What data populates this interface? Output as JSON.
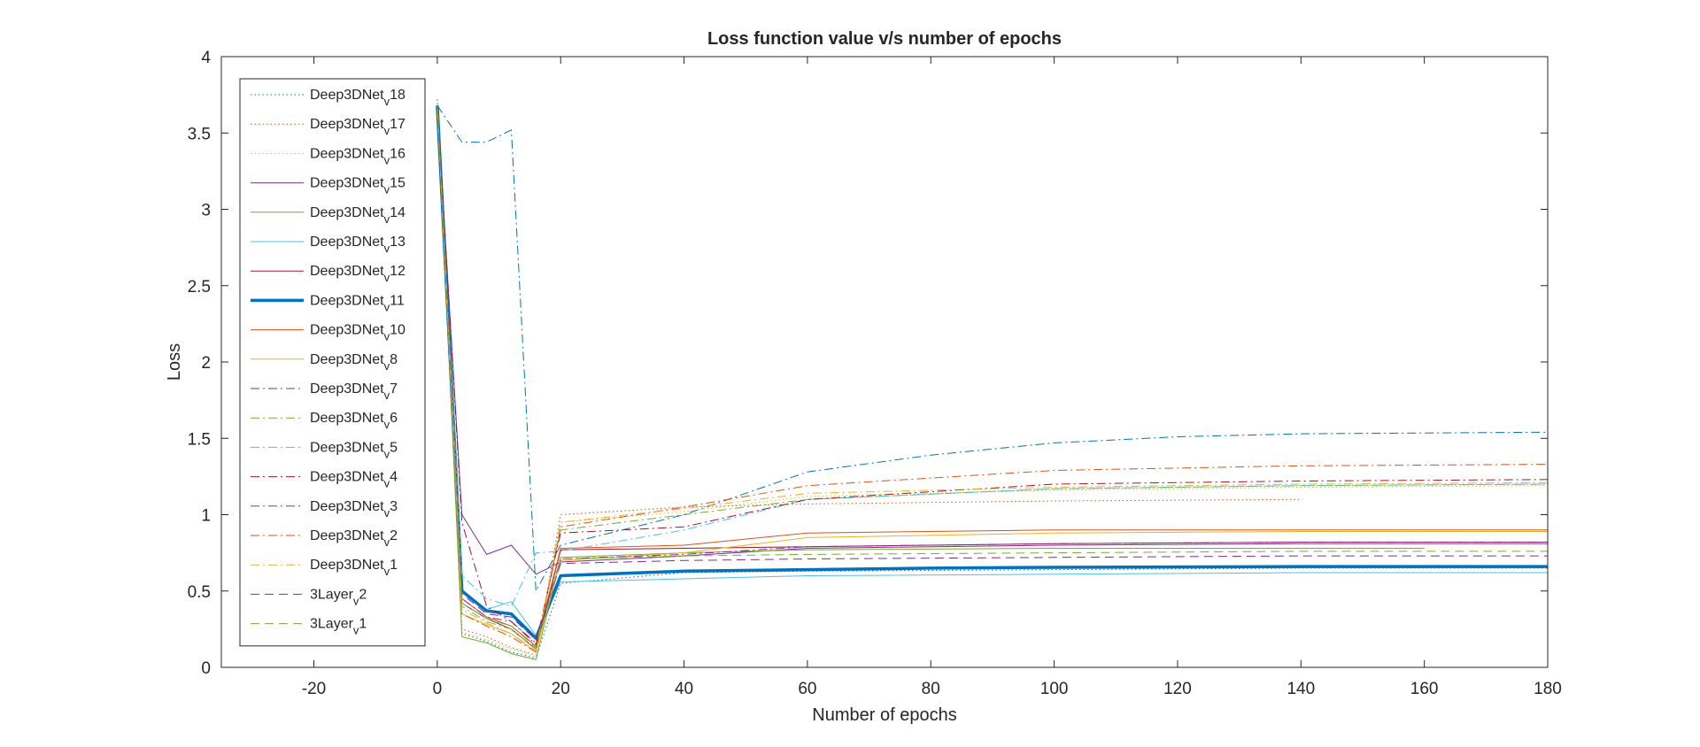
{
  "chart_data": {
    "type": "line",
    "title": "Loss function value v/s number of epochs",
    "xlabel": "Number of epochs",
    "ylabel": "Loss",
    "xlim": [
      -35,
      180
    ],
    "ylim": [
      0,
      4
    ],
    "xticks": [
      -20,
      0,
      20,
      40,
      60,
      80,
      100,
      120,
      140,
      160,
      180
    ],
    "yticks": [
      0,
      0.5,
      1,
      1.5,
      2,
      2.5,
      3,
      3.5,
      4
    ],
    "grid": false,
    "legend_position": "top-left",
    "series": [
      {
        "name": "Deep3DNet_v18",
        "label_base": "Deep3DNet",
        "label_sub": "v",
        "label_suffix": "18",
        "color": "#0072BD",
        "dash": "dotted",
        "width": 1,
        "x": [
          0,
          4,
          8,
          12,
          16,
          20,
          40,
          60,
          100,
          140,
          160,
          180
        ],
        "y": [
          3.72,
          0.22,
          0.17,
          0.1,
          0.06,
          0.55,
          0.62,
          0.63,
          0.64,
          0.65,
          0.65,
          0.65
        ]
      },
      {
        "name": "Deep3DNet_v17",
        "label_base": "Deep3DNet",
        "label_sub": "v",
        "label_suffix": "17",
        "color": "#D95319",
        "dash": "dotted",
        "width": 1,
        "x": [
          0,
          4,
          8,
          12,
          16,
          20,
          40,
          60,
          100,
          140
        ],
        "y": [
          3.7,
          0.25,
          0.2,
          0.13,
          0.08,
          1.0,
          1.05,
          1.07,
          1.09,
          1.1
        ]
      },
      {
        "name": "Deep3DNet_v16",
        "label_base": "Deep3DNet",
        "label_sub": "v",
        "label_suffix": "16",
        "color": "#EDB120",
        "dash": "dotted",
        "width": 1,
        "x": [
          0,
          4,
          8,
          12,
          16,
          20,
          40,
          60,
          100,
          140,
          180
        ],
        "y": [
          3.7,
          0.23,
          0.18,
          0.12,
          0.07,
          0.95,
          1.02,
          1.12,
          1.16,
          1.18,
          1.19
        ]
      },
      {
        "name": "Deep3DNet_v15",
        "label_base": "Deep3DNet",
        "label_sub": "v",
        "label_suffix": "15",
        "color": "#7E2F8E",
        "dash": "solid",
        "width": 1,
        "x": [
          0,
          4,
          8,
          12,
          16,
          20,
          40,
          60,
          100,
          140,
          180
        ],
        "y": [
          3.68,
          1.0,
          0.74,
          0.8,
          0.61,
          0.69,
          0.73,
          0.78,
          0.8,
          0.81,
          0.81
        ]
      },
      {
        "name": "Deep3DNet_v14",
        "label_base": "Deep3DNet",
        "label_sub": "v",
        "label_suffix": "14",
        "color": "#77AC30",
        "dash": "solid",
        "width": 1,
        "x": [
          0,
          4,
          8,
          12,
          16,
          20,
          40,
          60,
          100,
          140,
          160
        ],
        "y": [
          3.68,
          0.2,
          0.16,
          0.09,
          0.05,
          0.72,
          0.75,
          0.77,
          0.78,
          0.78,
          0.78
        ]
      },
      {
        "name": "Deep3DNet_v13",
        "label_base": "Deep3DNet",
        "label_sub": "v",
        "label_suffix": "13",
        "color": "#4DBEEE",
        "dash": "solid",
        "width": 1,
        "x": [
          0,
          4,
          8,
          12,
          16,
          20,
          40,
          60,
          100,
          140,
          180
        ],
        "y": [
          3.68,
          0.5,
          0.38,
          0.43,
          0.21,
          0.56,
          0.58,
          0.6,
          0.61,
          0.62,
          0.62
        ]
      },
      {
        "name": "Deep3DNet_v12",
        "label_base": "Deep3DNet",
        "label_sub": "v",
        "label_suffix": "12",
        "color": "#A2142F",
        "dash": "solid",
        "width": 1,
        "x": [
          0,
          4,
          8,
          12,
          16,
          20,
          40,
          60,
          100,
          140,
          180
        ],
        "y": [
          3.68,
          0.42,
          0.32,
          0.25,
          0.12,
          0.77,
          0.78,
          0.79,
          0.81,
          0.82,
          0.82
        ]
      },
      {
        "name": "Deep3DNet_v11",
        "label_base": "Deep3DNet",
        "label_sub": "v",
        "label_suffix": "11",
        "color": "#0072BD",
        "dash": "solid",
        "width": 3.5,
        "x": [
          0,
          4,
          8,
          12,
          16,
          20,
          40,
          60,
          80,
          100,
          140,
          180
        ],
        "y": [
          3.68,
          0.5,
          0.37,
          0.35,
          0.19,
          0.6,
          0.63,
          0.64,
          0.65,
          0.655,
          0.66,
          0.66
        ]
      },
      {
        "name": "Deep3DNet_v10",
        "label_base": "Deep3DNet",
        "label_sub": "v",
        "label_suffix": "10",
        "color": "#D95319",
        "dash": "solid",
        "width": 1,
        "x": [
          0,
          4,
          8,
          12,
          16,
          20,
          40,
          60,
          100,
          140,
          180
        ],
        "y": [
          3.68,
          0.45,
          0.33,
          0.27,
          0.14,
          0.78,
          0.8,
          0.88,
          0.9,
          0.9,
          0.9
        ]
      },
      {
        "name": "Deep3DNet_v8",
        "label_base": "Deep3DNet",
        "label_sub": "v",
        "label_suffix": "8",
        "color": "#EDB120",
        "dash": "solid",
        "width": 1,
        "x": [
          0,
          4,
          8,
          12,
          16,
          20,
          40,
          60,
          100,
          140,
          180
        ],
        "y": [
          3.68,
          0.35,
          0.28,
          0.22,
          0.1,
          0.7,
          0.75,
          0.85,
          0.88,
          0.89,
          0.89
        ]
      },
      {
        "name": "Deep3DNet_v7",
        "label_base": "Deep3DNet",
        "label_sub": "v",
        "label_suffix": "7",
        "color": "#7E2F8E",
        "dash": "dashdot",
        "width": 1,
        "x": [
          0,
          4,
          8,
          12,
          16,
          20,
          40,
          60,
          100,
          140,
          180
        ],
        "y": [
          3.68,
          0.45,
          0.33,
          0.3,
          0.16,
          0.71,
          0.74,
          0.79,
          0.81,
          0.82,
          0.82
        ]
      },
      {
        "name": "Deep3DNet_v6",
        "label_base": "Deep3DNet",
        "label_sub": "v",
        "label_suffix": "6",
        "color": "#77AC30",
        "dash": "dashdot",
        "width": 1,
        "x": [
          0,
          4,
          8,
          12,
          16,
          20,
          40,
          60,
          100,
          140,
          180
        ],
        "y": [
          3.68,
          0.4,
          0.3,
          0.25,
          0.12,
          0.9,
          1.0,
          1.1,
          1.17,
          1.19,
          1.2
        ]
      },
      {
        "name": "Deep3DNet_v5",
        "label_base": "Deep3DNet",
        "label_sub": "v",
        "label_suffix": "5",
        "color": "#4DBEEE",
        "dash": "dashdot",
        "width": 1,
        "x": [
          0,
          4,
          8,
          12,
          16,
          20,
          40,
          60,
          100,
          140,
          180
        ],
        "y": [
          3.68,
          0.6,
          0.45,
          0.4,
          0.75,
          0.76,
          0.9,
          1.1,
          1.17,
          1.19,
          1.2
        ]
      },
      {
        "name": "Deep3DNet_v4",
        "label_base": "Deep3DNet",
        "label_sub": "v",
        "label_suffix": "4",
        "color": "#A2142F",
        "dash": "dashdot",
        "width": 1,
        "x": [
          0,
          4,
          8,
          12,
          16,
          20,
          40,
          60,
          100,
          140,
          180
        ],
        "y": [
          3.68,
          0.95,
          0.4,
          0.3,
          0.15,
          0.88,
          0.92,
          1.1,
          1.2,
          1.22,
          1.23
        ]
      },
      {
        "name": "Deep3DNet_v3",
        "label_base": "Deep3DNet",
        "label_sub": "v",
        "label_suffix": "3",
        "color": "#0072BD",
        "dash": "dashdot",
        "width": 1,
        "x": [
          0,
          4,
          8,
          12,
          16,
          20,
          40,
          60,
          80,
          100,
          120,
          140,
          160,
          180
        ],
        "y": [
          3.68,
          3.44,
          3.44,
          3.52,
          0.5,
          0.8,
          1.0,
          1.28,
          1.39,
          1.47,
          1.51,
          1.53,
          1.535,
          1.54
        ]
      },
      {
        "name": "Deep3DNet_v2",
        "label_base": "Deep3DNet",
        "label_sub": "v",
        "label_suffix": "2",
        "color": "#D95319",
        "dash": "dashdot",
        "width": 1,
        "x": [
          0,
          4,
          8,
          12,
          16,
          20,
          40,
          60,
          100,
          140,
          180
        ],
        "y": [
          3.68,
          0.35,
          0.27,
          0.2,
          0.1,
          0.92,
          1.05,
          1.19,
          1.29,
          1.32,
          1.33
        ]
      },
      {
        "name": "Deep3DNet_v1",
        "label_base": "Deep3DNet",
        "label_sub": "v",
        "label_suffix": "1",
        "color": "#EDB120",
        "dash": "dashdot",
        "width": 1,
        "x": [
          0,
          4,
          8,
          12,
          16,
          20,
          40,
          60,
          100,
          140,
          180
        ],
        "y": [
          3.68,
          0.38,
          0.29,
          0.22,
          0.11,
          0.95,
          1.04,
          1.14,
          1.18,
          1.2,
          1.21
        ]
      },
      {
        "name": "3Layer_v2",
        "label_base": "3Layer",
        "label_sub": "v",
        "label_suffix": "2",
        "color": "#7E2F8E",
        "dash": "dashed",
        "width": 1,
        "x": [
          0,
          4,
          8,
          12,
          16,
          20,
          40,
          60,
          100,
          140,
          180
        ],
        "y": [
          3.68,
          0.48,
          0.35,
          0.33,
          0.18,
          0.68,
          0.7,
          0.71,
          0.72,
          0.73,
          0.73
        ]
      },
      {
        "name": "3Layer_v1",
        "label_base": "3Layer",
        "label_sub": "v",
        "label_suffix": "1",
        "color": "#77AC30",
        "dash": "dashed",
        "width": 1,
        "x": [
          0,
          4,
          8,
          12,
          16,
          20,
          40,
          60,
          100,
          140,
          180
        ],
        "y": [
          3.68,
          0.42,
          0.32,
          0.27,
          0.13,
          0.71,
          0.73,
          0.74,
          0.75,
          0.76,
          0.76
        ]
      }
    ]
  }
}
